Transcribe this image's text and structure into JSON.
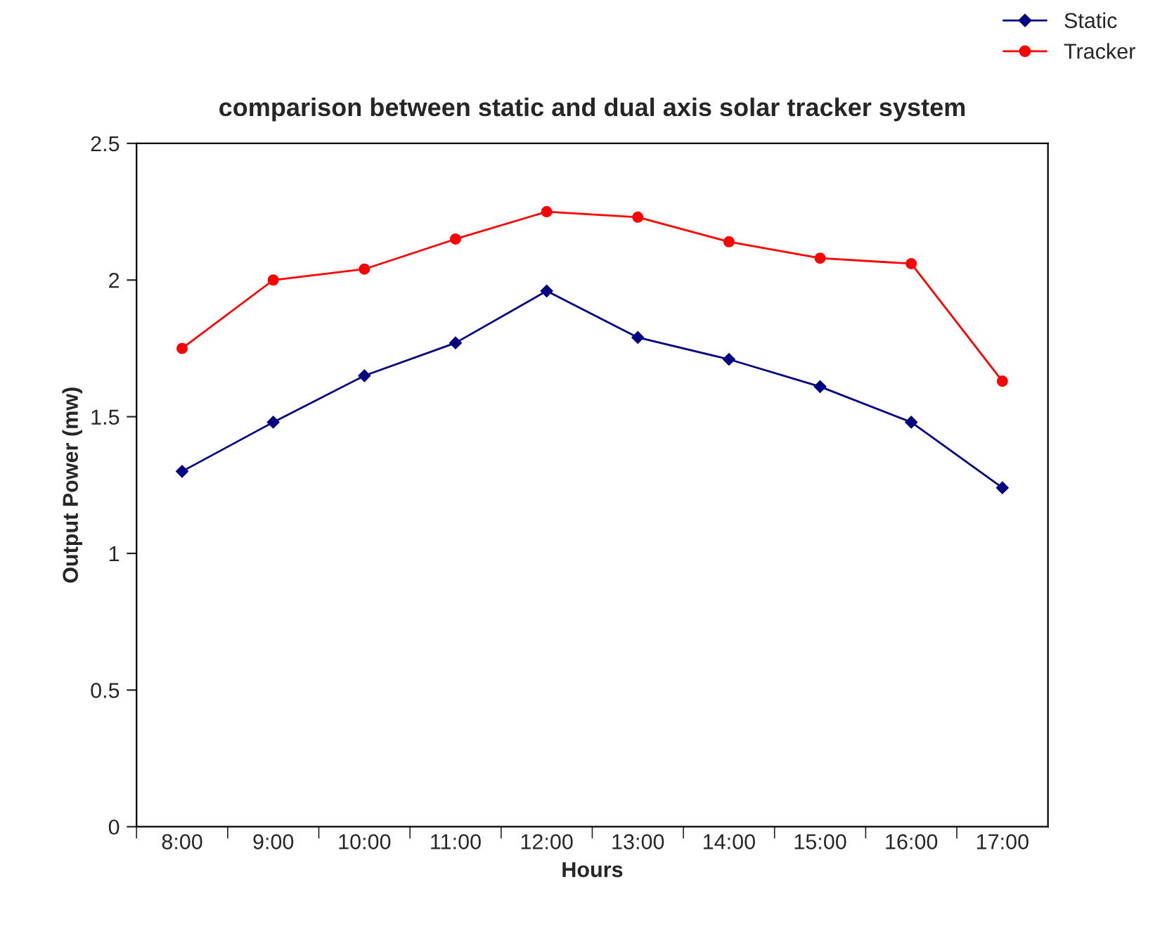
{
  "chart_data": {
    "type": "line",
    "title": "comparison between static and dual axis solar tracker system",
    "xlabel": "Hours",
    "ylabel": "Output Power (mw)",
    "categories": [
      "8:00",
      "9:00",
      "10:00",
      "11:00",
      "12:00",
      "13:00",
      "14:00",
      "15:00",
      "16:00",
      "17:00"
    ],
    "series": [
      {
        "name": "Static",
        "color": "#000080",
        "marker": "diamond",
        "values": [
          1.3,
          1.48,
          1.65,
          1.77,
          1.96,
          1.79,
          1.71,
          1.61,
          1.48,
          1.24
        ]
      },
      {
        "name": "Tracker",
        "color": "#ff0000",
        "marker": "circle",
        "values": [
          1.75,
          2.0,
          2.04,
          2.15,
          2.25,
          2.23,
          2.14,
          2.08,
          2.06,
          1.63
        ]
      }
    ],
    "ylim": [
      0,
      2.5
    ],
    "yticks": [
      0,
      0.5,
      1,
      1.5,
      2,
      2.5
    ],
    "grid": false,
    "legend": "top right",
    "line_style": "solid"
  }
}
